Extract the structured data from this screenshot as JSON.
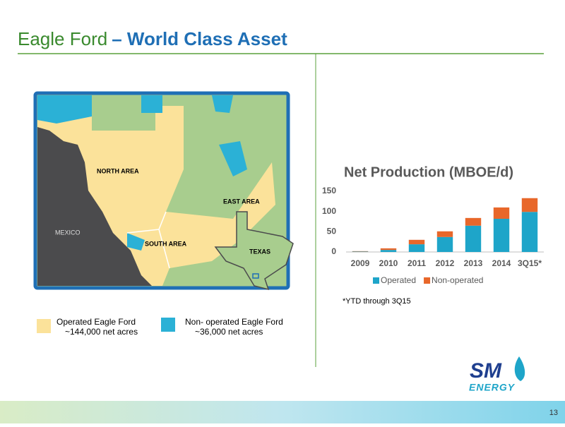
{
  "slide": {
    "title_lead": "Eagle Ford",
    "title_rest": "– World Class Asset",
    "map_labels": [
      "NORTH AREA",
      "EAST AREA",
      "MEXICO",
      "SOUTH AREA",
      "TEXAS"
    ],
    "legend": [
      {
        "label": "Operated Eagle Ford",
        "detail": "~144,000 net acres"
      },
      {
        "label": "Non- operated Eagle Ford",
        "detail": "~36,000 net acres"
      }
    ],
    "footnote": "*YTD through 3Q15",
    "logo_top": "SM",
    "logo_bottom": "ENERGY",
    "page_number": "13"
  },
  "chart_data": {
    "type": "stacked-bar",
    "title": "Net Production (MBOE/d)",
    "categories": [
      "2009",
      "2010",
      "2011",
      "2012",
      "2013",
      "2014",
      "3Q15*"
    ],
    "series": [
      {
        "name": "Operated",
        "color": "#1ea5c9",
        "values": [
          1,
          5,
          19,
          37,
          65,
          82,
          99
        ]
      },
      {
        "name": "Non-operated",
        "color": "#e8672a",
        "values": [
          1,
          4,
          11,
          14,
          19,
          28,
          34
        ]
      }
    ],
    "ylim": [
      0,
      150
    ],
    "yticks": [
      0,
      50,
      100,
      150
    ],
    "grid": false,
    "legend": "bottom"
  }
}
